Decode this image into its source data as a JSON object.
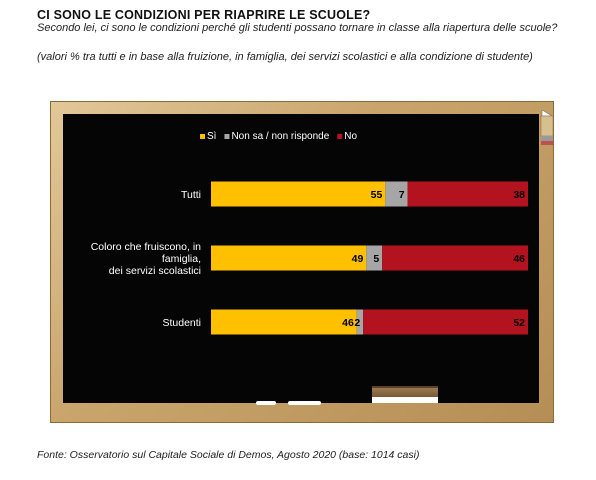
{
  "header": {
    "title": "CI SONO LE CONDIZIONI PER RIAPRIRE LE SCUOLE?",
    "subtitle": "Secondo lei, ci sono le condizioni perché gli studenti possano tornare in classe alla riapertura delle scuole?",
    "note": "(valori % tra tutti e in base alla fruizione, in famiglia, dei servizi scolastici e alla condizione di studente)"
  },
  "footer": {
    "source": "Fonte: Osservatorio sul Capitale Sociale di Demos, Agosto 2020 (base: 1014 casi)"
  },
  "colors": {
    "si": "#FFC000",
    "non_sa": "#A6A6A6",
    "no": "#B3121F",
    "board": "#050505"
  },
  "chart_data": {
    "type": "bar",
    "orientation": "horizontal",
    "stacked": true,
    "categories": [
      [
        "Tutti"
      ],
      [
        "Coloro che fruiscono, in",
        "famiglia,",
        "dei servizi scolastici"
      ],
      [
        "Studenti"
      ]
    ],
    "series": [
      {
        "name": "Sì",
        "values": [
          55,
          49,
          46
        ],
        "color": "#FFC000"
      },
      {
        "name": "Non sa / non risponde",
        "values": [
          7,
          5,
          2
        ],
        "color": "#A6A6A6"
      },
      {
        "name": "No",
        "values": [
          38,
          46,
          52
        ],
        "color": "#B3121F"
      }
    ],
    "xlim": [
      0,
      100
    ],
    "legend_position": "top",
    "grid": false
  }
}
